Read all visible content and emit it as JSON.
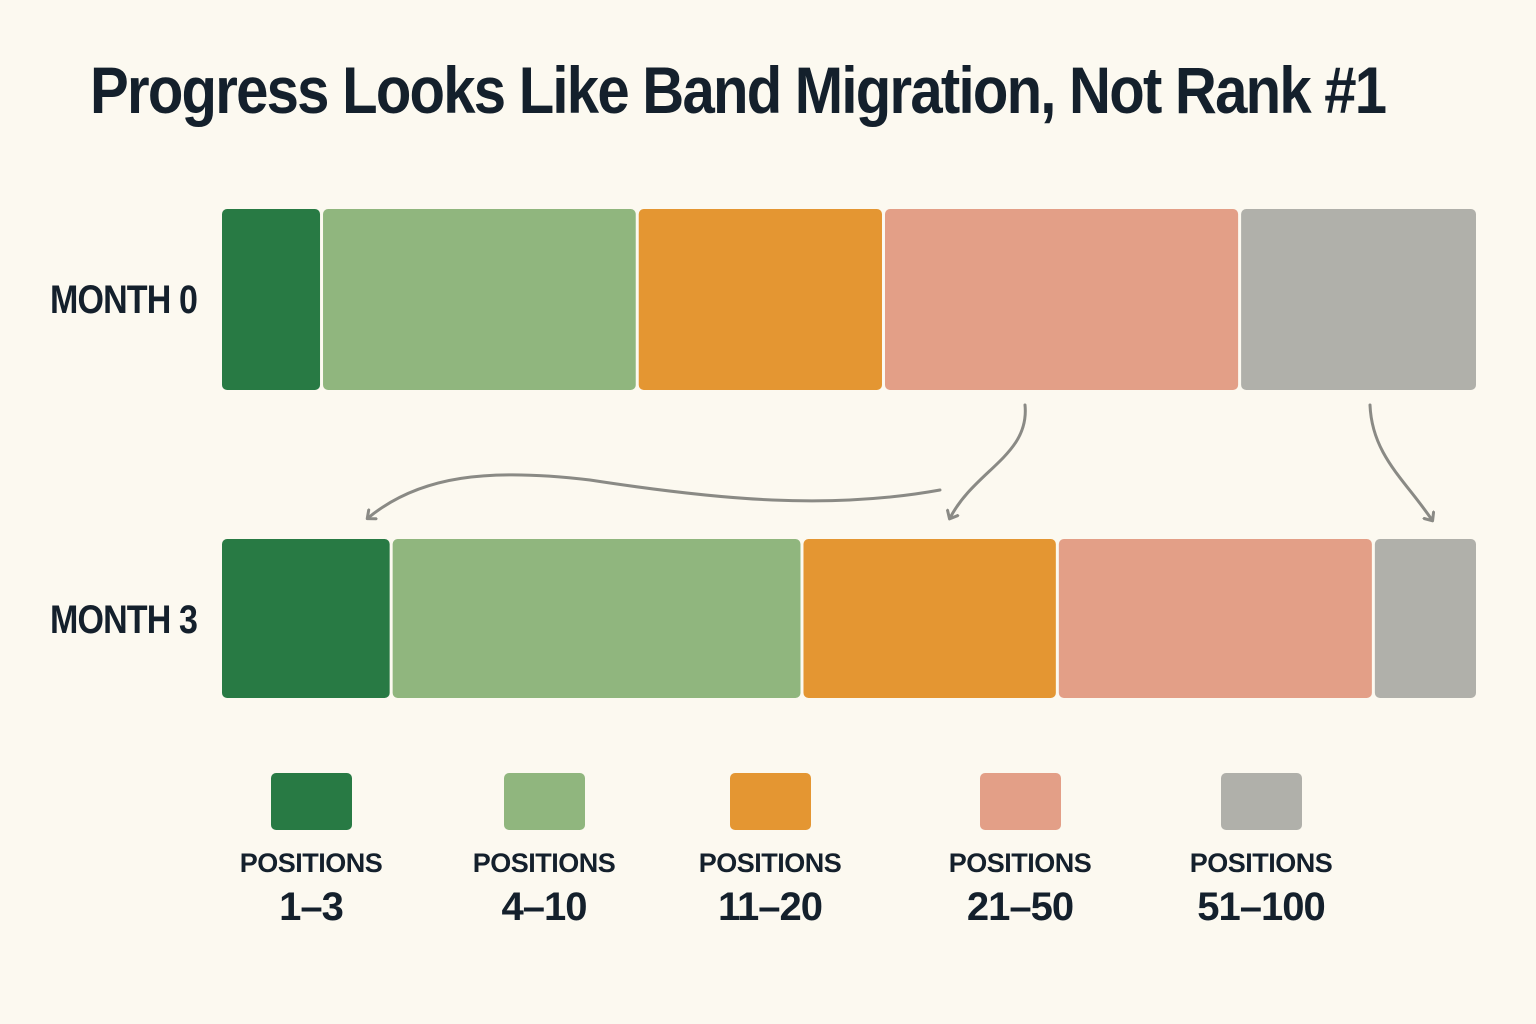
{
  "title": "Progress Looks Like Band Migration, Not Rank #1",
  "chart_data": {
    "type": "bar",
    "orientation": "horizontal",
    "stacked": "100%",
    "categories": [
      "MONTH 0",
      "MONTH 3"
    ],
    "series": [
      {
        "name": "POSITIONS 1–3",
        "label_prefix": "POSITIONS",
        "label_range": "1–3",
        "color": "#287a44",
        "values": [
          8,
          13.5
        ]
      },
      {
        "name": "POSITIONS 4–10",
        "label_prefix": "POSITIONS",
        "label_range": "4–10",
        "color": "#90b67e",
        "values": [
          25,
          32.5
        ]
      },
      {
        "name": "POSITIONS 11–20",
        "label_prefix": "POSITIONS",
        "label_range": "11–20",
        "color": "#e49632",
        "values": [
          19.5,
          20.2
        ]
      },
      {
        "name": "POSITIONS 21–50",
        "label_prefix": "POSITIONS",
        "label_range": "21–50",
        "color": "#e39f87",
        "values": [
          28.2,
          25
        ]
      },
      {
        "name": "POSITIONS 51–100",
        "label_prefix": "POSITIONS",
        "label_range": "51–100",
        "color": "#b0b0aa",
        "values": [
          18.6,
          8
        ]
      }
    ],
    "annotations": "arrows from MONTH 0 bands to MONTH 3 bands showing upward migration",
    "legend_position": "bottom",
    "grid": false
  },
  "colors": {
    "background": "#fcf9f0",
    "text": "#14202c",
    "arrow": "#8a8a85"
  }
}
